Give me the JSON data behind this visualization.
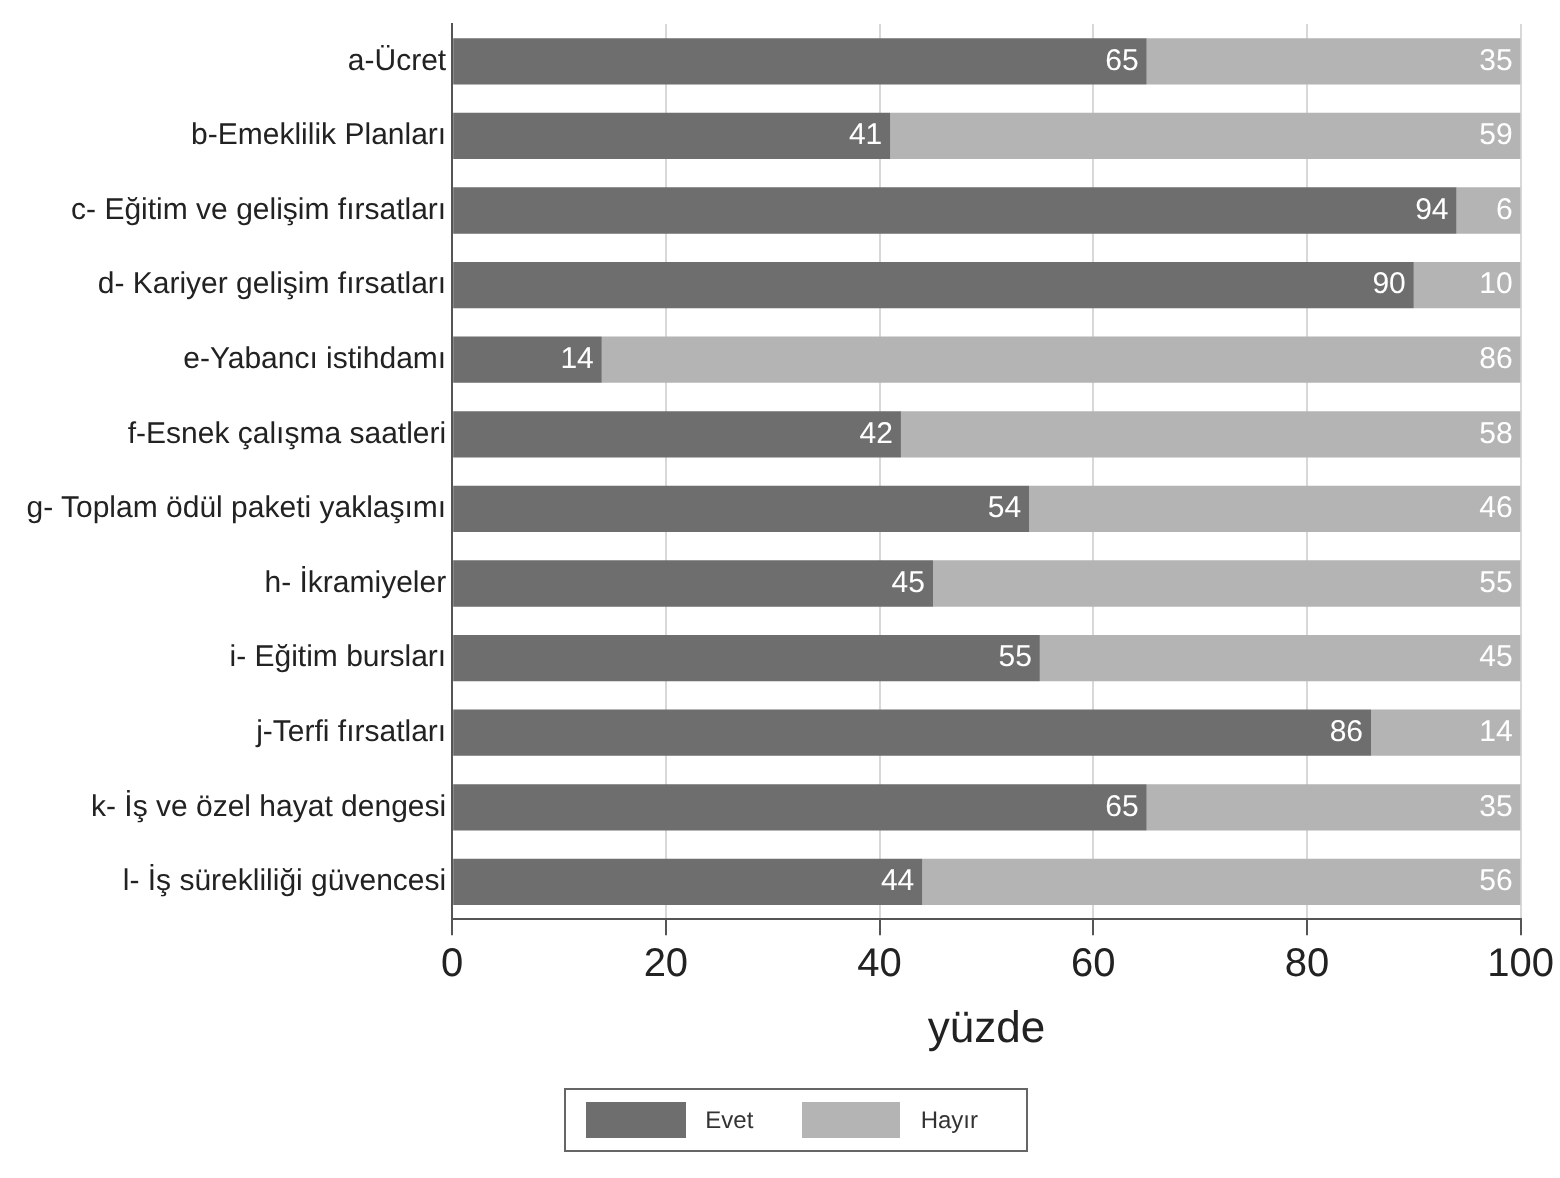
{
  "chart_data": {
    "type": "bar",
    "orientation": "horizontal",
    "stacked": true,
    "categories": [
      "a-Ücret",
      "b-Emeklilik Planları",
      "c- Eğitim ve gelişim fırsatları",
      "d- Kariyer gelişim fırsatları",
      "e-Yabancı istihdamı",
      "f-Esnek çalışma saatleri",
      "g- Toplam ödül paketi yaklaşımı",
      "h- İkramiyeler",
      "i- Eğitim bursları",
      "j-Terfi fırsatları",
      "k- İş ve özel hayat dengesi",
      "l- İş sürekliliği güvencesi"
    ],
    "series": [
      {
        "name": "Evet",
        "color": "#6e6e6e",
        "values": [
          65,
          41,
          94,
          90,
          14,
          42,
          54,
          45,
          55,
          86,
          65,
          44
        ]
      },
      {
        "name": "Hayır",
        "color": "#b4b4b4",
        "values": [
          35,
          59,
          6,
          10,
          86,
          58,
          46,
          55,
          45,
          14,
          35,
          56
        ]
      }
    ],
    "xlim": [
      0,
      100
    ],
    "xticks": [
      0,
      20,
      40,
      60,
      80,
      100
    ],
    "xlabel": "yüzde",
    "grid": "x",
    "legend": "bottom",
    "data_labels": true
  }
}
